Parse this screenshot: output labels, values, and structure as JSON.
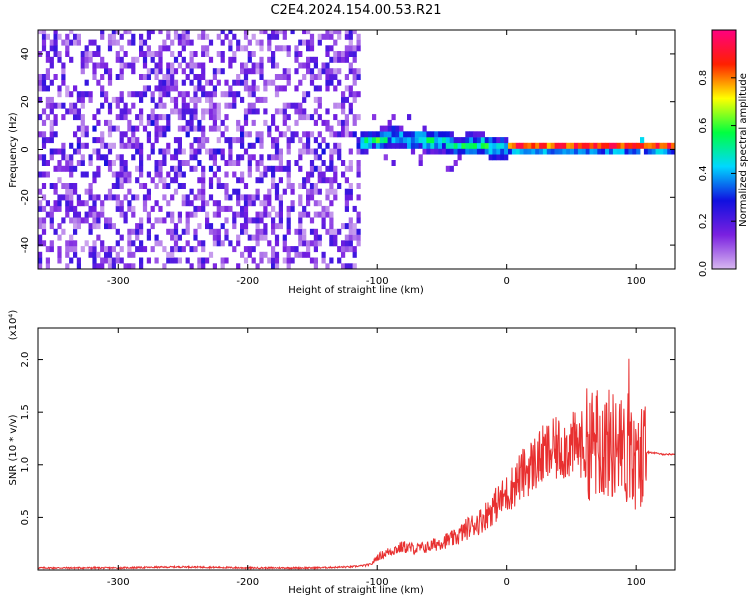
{
  "title": "C2E4.2024.154.00.53.R21",
  "chart_data": [
    {
      "type": "heatmap",
      "xlabel": "Height of straight line (km)",
      "ylabel": "Frequency (Hz)",
      "xlim": [
        -362,
        130
      ],
      "ylim": [
        -50,
        50
      ],
      "xticks": [
        -300,
        -200,
        -100,
        0,
        100
      ],
      "yticks": [
        -40,
        -20,
        0,
        20,
        40
      ],
      "colorbar": {
        "label": "Normalized spectral amplitude",
        "range": [
          0.0,
          1.0
        ],
        "ticks": [
          0.0,
          0.2,
          0.4,
          0.6,
          0.8
        ],
        "tick_labels": [
          "0.0",
          "0.2",
          "0.4",
          "0.6",
          "0.8"
        ],
        "colormap": [
          "#d8b8f0",
          "#7a20e0",
          "#1010e0",
          "#00d8ff",
          "#00ff40",
          "#ffff00",
          "#ff2000",
          "#ff0080"
        ]
      },
      "noise_region_x": [
        -362,
        -115
      ],
      "trace": {
        "x": [
          -115,
          -100,
          -90,
          -80,
          -70,
          -60,
          -50,
          -40,
          -30,
          -20,
          -10,
          0,
          20,
          40,
          60,
          80,
          100,
          102,
          105,
          130
        ],
        "y": [
          2,
          3,
          4,
          3,
          3,
          2,
          2,
          0,
          1,
          1,
          -1,
          0,
          0,
          0,
          0,
          0,
          0,
          2,
          0,
          0
        ]
      },
      "grid": false
    },
    {
      "type": "line",
      "xlabel": "Height of straight line (km)",
      "ylabel": "SNR (10 * v/v)",
      "y_multiplier": "(x10⁴)",
      "xlim": [
        -362,
        130
      ],
      "ylim": [
        0,
        2.3
      ],
      "xticks": [
        -300,
        -200,
        -100,
        0,
        100
      ],
      "yticks": [
        0.5,
        1.0,
        1.5,
        2.0
      ],
      "ytick_labels": [
        "0.5",
        "1.0",
        "1.5",
        "2.0"
      ],
      "color": "#e83030",
      "series": [
        {
          "x": [
            -362,
            -300,
            -250,
            -200,
            -150,
            -120,
            -105,
            -100,
            -90,
            -80,
            -70,
            -60,
            -50,
            -40,
            -30,
            -20,
            -10,
            0,
            10,
            20,
            30,
            40,
            50,
            60,
            70,
            80,
            90,
            100,
            105,
            110,
            120,
            130
          ],
          "y": [
            0.02,
            0.02,
            0.03,
            0.02,
            0.02,
            0.03,
            0.05,
            0.12,
            0.18,
            0.22,
            0.2,
            0.22,
            0.27,
            0.3,
            0.4,
            0.47,
            0.6,
            0.72,
            0.88,
            1.0,
            1.1,
            1.15,
            1.18,
            1.2,
            1.2,
            1.2,
            1.12,
            1.0,
            1.1,
            1.12,
            1.1,
            1.1
          ]
        }
      ],
      "grid": false
    }
  ]
}
